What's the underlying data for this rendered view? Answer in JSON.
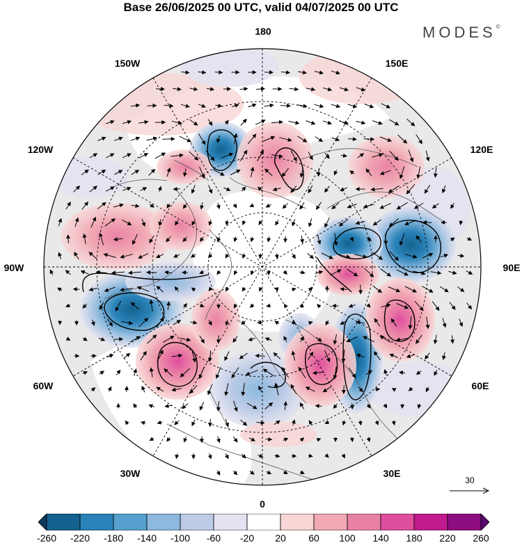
{
  "title": "Base 26/06/2025 00 UTC, valid 04/07/2025 00 UTC",
  "brand": "MODES",
  "brand_mark": "©",
  "map": {
    "projection": "north-polar-stereographic",
    "lon_labels": [
      {
        "text": "180",
        "lon": 180
      },
      {
        "text": "150E",
        "lon": 150
      },
      {
        "text": "120E",
        "lon": 120
      },
      {
        "text": "90E",
        "lon": 90
      },
      {
        "text": "60E",
        "lon": 60
      },
      {
        "text": "30E",
        "lon": 30
      },
      {
        "text": "0",
        "lon": 0
      },
      {
        "text": "30W",
        "lon": -30
      },
      {
        "text": "60W",
        "lon": -60
      },
      {
        "text": "90W",
        "lon": -90
      },
      {
        "text": "120W",
        "lon": -120
      },
      {
        "text": "150W",
        "lon": -150
      }
    ],
    "colorbar": {
      "ticks": [
        "-260",
        "-220",
        "-180",
        "-140",
        "-100",
        "-60",
        "-20",
        "20",
        "60",
        "100",
        "140",
        "180",
        "220",
        "260"
      ],
      "colors": [
        "#0d3a5c",
        "#14628f",
        "#2a83b8",
        "#55a0cc",
        "#8cb9dd",
        "#bccbe6",
        "#e3e2f0",
        "#ffffff",
        "#f8d6d6",
        "#f1a9b4",
        "#ea82a6",
        "#df4f9d",
        "#c21b8f",
        "#8e0d80",
        "#5a0a6e"
      ]
    },
    "reference_vector": {
      "value": "30"
    }
  }
}
